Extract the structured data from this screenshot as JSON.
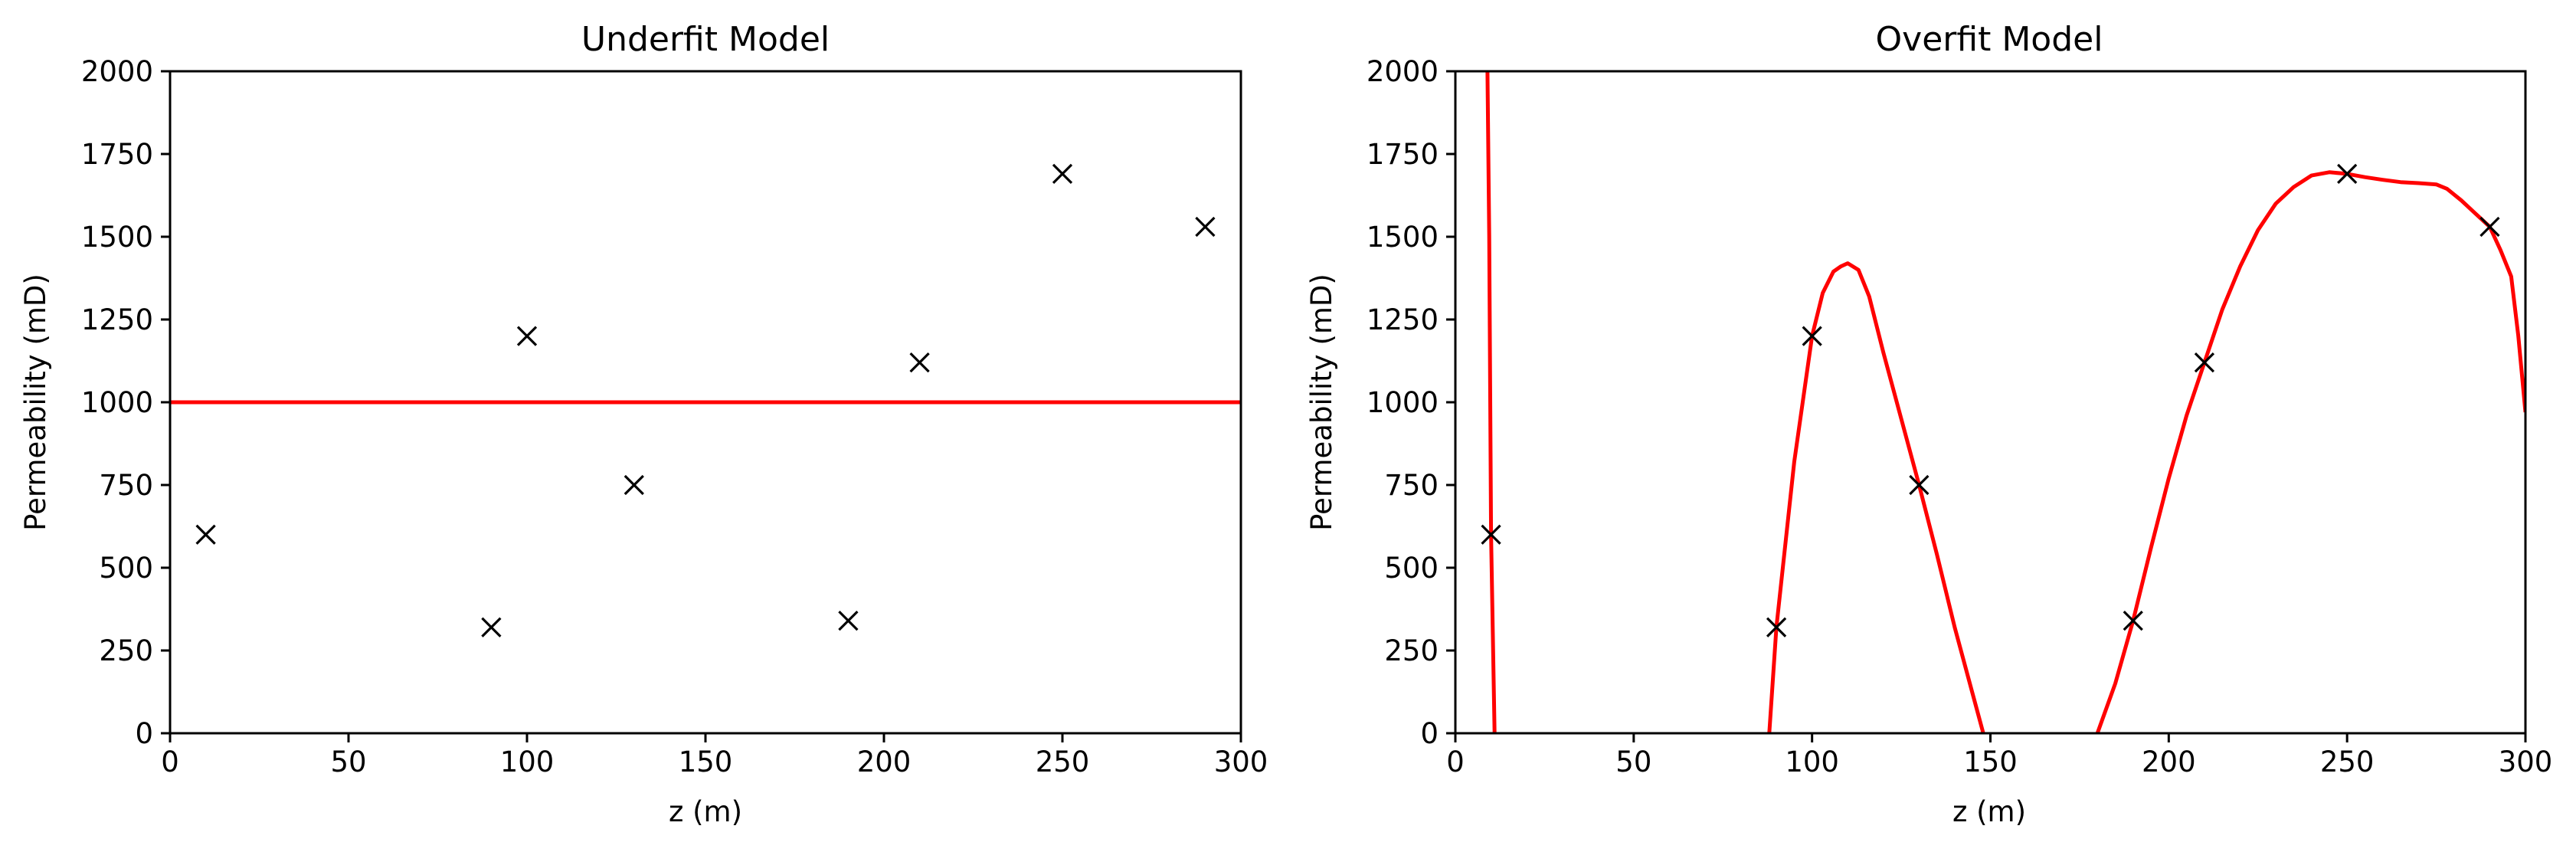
{
  "chart_data": [
    {
      "type": "scatter",
      "title": "Underfit Model",
      "xlabel": "z (m)",
      "ylabel": "Permeability (mD)",
      "xlim": [
        0,
        300
      ],
      "ylim": [
        0,
        2000
      ],
      "xticks": [
        0,
        50,
        100,
        150,
        200,
        250,
        300
      ],
      "yticks": [
        0,
        250,
        500,
        750,
        1000,
        1250,
        1500,
        1750,
        2000
      ],
      "grid": false,
      "colors": {
        "points": "#000000",
        "line": "#ff0000"
      },
      "points": {
        "marker": "x",
        "x": [
          10,
          90,
          100,
          130,
          190,
          210,
          250,
          290
        ],
        "y": [
          600,
          320,
          1200,
          750,
          340,
          1120,
          1690,
          1530
        ]
      },
      "line": {
        "x": [
          0,
          300
        ],
        "y": [
          1000,
          1000
        ]
      }
    },
    {
      "type": "scatter",
      "title": "Overfit Model",
      "xlabel": "z (m)",
      "ylabel": "Permeability (mD)",
      "xlim": [
        0,
        300
      ],
      "ylim": [
        0,
        2000
      ],
      "xticks": [
        0,
        50,
        100,
        150,
        200,
        250,
        300
      ],
      "yticks": [
        0,
        250,
        500,
        750,
        1000,
        1250,
        1500,
        1750,
        2000
      ],
      "grid": false,
      "colors": {
        "points": "#000000",
        "line": "#ff0000"
      },
      "points": {
        "marker": "x",
        "x": [
          10,
          90,
          100,
          130,
          190,
          210,
          250,
          290
        ],
        "y": [
          600,
          320,
          1200,
          750,
          340,
          1120,
          1690,
          1530
        ]
      },
      "line": {
        "x": [
          9,
          9.5,
          10,
          10.5,
          11,
          null,
          88,
          90,
          95,
          100,
          103,
          106,
          108,
          110,
          113,
          116,
          120,
          125,
          130,
          135,
          140,
          145,
          148,
          null,
          180,
          185,
          190,
          195,
          200,
          205,
          210,
          215,
          220,
          225,
          230,
          235,
          240,
          245,
          250,
          255,
          260,
          265,
          270,
          275,
          278,
          282,
          286,
          290,
          293,
          296,
          298,
          300
        ],
        "y": [
          2000,
          1500,
          600,
          300,
          0,
          null,
          0,
          320,
          820,
          1200,
          1330,
          1395,
          1410,
          1420,
          1400,
          1320,
          1150,
          950,
          750,
          540,
          320,
          120,
          0,
          null,
          0,
          150,
          340,
          560,
          770,
          960,
          1120,
          1280,
          1410,
          1520,
          1600,
          1650,
          1685,
          1695,
          1690,
          1680,
          1672,
          1665,
          1662,
          1658,
          1645,
          1610,
          1570,
          1530,
          1460,
          1380,
          1200,
          970
        ]
      }
    }
  ]
}
